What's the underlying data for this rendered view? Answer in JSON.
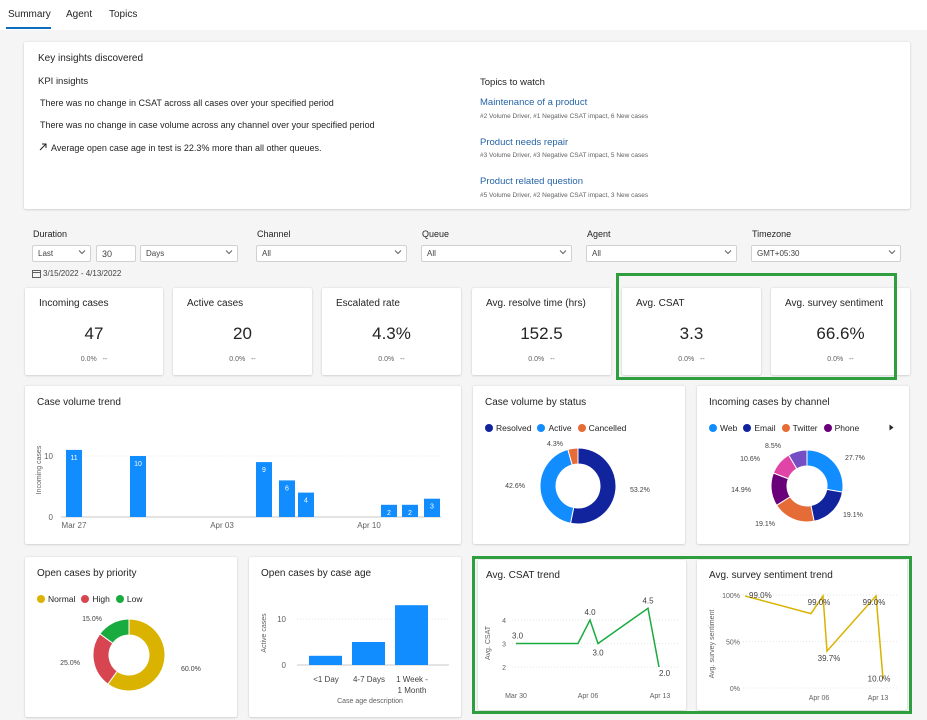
{
  "tabs": [
    {
      "label": "Summary"
    },
    {
      "label": "Agent"
    },
    {
      "label": "Topics"
    }
  ],
  "insights": {
    "title": "Key insights discovered",
    "kpi_title": "KPI insights",
    "kpi_items": [
      "There was no change in CSAT across all cases over your specified period",
      "There was no change in case volume across any channel over your specified period",
      "Average open case age in test is 22.3% more than all other queues."
    ],
    "topics_title": "Topics to watch",
    "topics": [
      {
        "name": "Maintenance of a product",
        "detail": "#2 Volume Driver, #1 Negative CSAT impact, 6 New cases"
      },
      {
        "name": "Product needs repair",
        "detail": "#3 Volume Driver, #3 Negative CSAT impact, 5 New cases"
      },
      {
        "name": "Product related question",
        "detail": "#5 Volume Driver, #2 Negative CSAT impact, 3 New cases"
      }
    ]
  },
  "filters": {
    "duration_label": "Duration",
    "duration_mode": "Last",
    "duration_value": "30",
    "duration_unit": "Days",
    "date_range": "3/15/2022 - 4/13/2022",
    "channel_label": "Channel",
    "channel_value": "All",
    "queue_label": "Queue",
    "queue_value": "All",
    "agent_label": "Agent",
    "agent_value": "All",
    "timezone_label": "Timezone",
    "timezone_value": "GMT+05:30"
  },
  "kpis": [
    {
      "title": "Incoming cases",
      "value": "47",
      "change": "0.0%",
      "trend": "--"
    },
    {
      "title": "Active cases",
      "value": "20",
      "change": "0.0%",
      "trend": "--"
    },
    {
      "title": "Escalated rate",
      "value": "4.3%",
      "change": "0.0%",
      "trend": "--"
    },
    {
      "title": "Avg. resolve time (hrs)",
      "value": "152.5",
      "change": "0.0%",
      "trend": "--"
    },
    {
      "title": "Avg. CSAT",
      "value": "3.3",
      "change": "0.0%",
      "trend": "--"
    },
    {
      "title": "Avg. survey sentiment",
      "value": "66.6%",
      "change": "0.0%",
      "trend": "--"
    }
  ],
  "colors": {
    "accent": "#0f6cbd",
    "bar": "#118dff",
    "highlight": "#2e9e3f",
    "resolved": "#12239e",
    "active": "#118dff",
    "cancelled": "#e66c37",
    "web": "#118dff",
    "email": "#12239e",
    "twitter": "#e66c37",
    "phone": "#6b007b",
    "pink": "#e044a7",
    "purple2": "#744ec2",
    "normal": "#d9b300",
    "high": "#d64550",
    "low": "#1aab40",
    "csat_line": "#1aab40",
    "sentiment_line": "#d9b300"
  },
  "chart_data": [
    {
      "type": "bar",
      "title": "Case volume trend",
      "ylabel": "Incoming cases",
      "x_ticks": [
        "Mar 27",
        "Apr 03",
        "Apr 10"
      ],
      "y_ticks": [
        "0",
        "10"
      ],
      "ylim": [
        0,
        12
      ],
      "values": [
        11,
        10,
        9,
        6,
        4,
        2,
        2,
        3
      ],
      "labels": [
        "11",
        "10",
        "9",
        "6",
        "4",
        "2",
        "2",
        "3"
      ]
    },
    {
      "type": "pie",
      "title": "Case volume by status",
      "series": [
        {
          "name": "Resolved",
          "value": 53.2,
          "label": "53.2%"
        },
        {
          "name": "Active",
          "value": 42.6,
          "label": "42.6%"
        },
        {
          "name": "Cancelled",
          "value": 4.3,
          "label": "4.3%"
        }
      ]
    },
    {
      "type": "pie",
      "title": "Incoming cases by channel",
      "legend": [
        "Web",
        "Email",
        "Twitter",
        "Phone"
      ],
      "series": [
        {
          "name": "Web",
          "value": 27.7,
          "label": "27.7%"
        },
        {
          "name": "Email",
          "value": 19.1,
          "label": "19.1%"
        },
        {
          "name": "Twitter",
          "value": 19.1,
          "label": "19.1%"
        },
        {
          "name": "Phone",
          "value": 14.9,
          "label": "14.9%"
        },
        {
          "name": "",
          "value": 10.6,
          "label": "10.6%"
        },
        {
          "name": "",
          "value": 8.5,
          "label": "8.5%"
        }
      ]
    },
    {
      "type": "pie",
      "title": "Open cases by priority",
      "series": [
        {
          "name": "Normal",
          "value": 60.0,
          "label": "60.0%"
        },
        {
          "name": "High",
          "value": 25.0,
          "label": "25.0%"
        },
        {
          "name": "Low",
          "value": 15.0,
          "label": "15.0%"
        }
      ]
    },
    {
      "type": "bar",
      "title": "Open cases by case age",
      "ylabel": "Active cases",
      "xlabel": "Case age description",
      "categories": [
        "<1 Day",
        "4-7 Days",
        "1 Week - 1 Month"
      ],
      "values": [
        2,
        5,
        13
      ],
      "y_ticks": [
        "0",
        "10"
      ],
      "ylim": [
        0,
        14
      ]
    },
    {
      "type": "line",
      "title": "Avg. CSAT trend",
      "ylabel": "Avg. CSAT",
      "x_ticks": [
        "Mar 30",
        "Apr 06",
        "Apr 13"
      ],
      "y_ticks": [
        "2",
        "3",
        "4"
      ],
      "ylim": [
        1.8,
        4.8
      ],
      "values": [
        3.0,
        3.0,
        3.0,
        4.0,
        3.0,
        4.5,
        2.0
      ],
      "point_labels": [
        {
          "i": 0,
          "label": "3.0"
        },
        {
          "i": 3,
          "label": "4.0"
        },
        {
          "i": 4,
          "label": "3.0"
        },
        {
          "i": 5,
          "label": "4.5"
        },
        {
          "i": 6,
          "label": "2.0"
        }
      ]
    },
    {
      "type": "line",
      "title": "Avg. survey sentiment trend",
      "ylabel": "Avg. survey sentiment",
      "x_ticks": [
        "Apr 06",
        "Apr 13"
      ],
      "y_ticks": [
        "0%",
        "50%",
        "100%"
      ],
      "ylim": [
        0,
        100
      ],
      "values": [
        99.0,
        80,
        99.0,
        39.7,
        99.0,
        10.0
      ],
      "point_labels": [
        {
          "i": 0,
          "label": "99.0%"
        },
        {
          "i": 2,
          "label": "99.0%"
        },
        {
          "i": 3,
          "label": "39.7%"
        },
        {
          "i": 4,
          "label": "99.0%"
        },
        {
          "i": 5,
          "label": "10.0%"
        }
      ]
    }
  ]
}
